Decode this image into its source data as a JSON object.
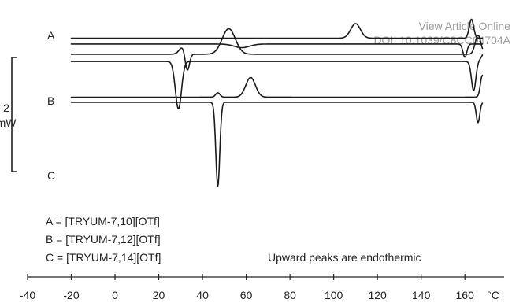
{
  "watermark": {
    "line1": "View Article Online",
    "line2": "DOI: 10.1039/C8CC04704A"
  },
  "chart_data": {
    "type": "line",
    "title": "",
    "xlabel": "",
    "x_unit": "°C",
    "ylabel": "",
    "xlim": [
      -40,
      170
    ],
    "x_ticks": [
      -40,
      -20,
      0,
      20,
      40,
      60,
      80,
      100,
      120,
      140,
      160
    ],
    "scale_bar": {
      "value": 2,
      "line1": "2",
      "line2": "mW"
    },
    "grid": false,
    "note": "Upward peaks are endothermic",
    "legend": [
      "A = [TRYUM-7,10][OTf]",
      "B = [TRYUM-7,12][OTf]",
      "C = [TRYUM-7,14][OTf]"
    ],
    "series": [
      {
        "name": "A",
        "traces": [
          {
            "direction": "heating",
            "baseline": 0.35,
            "peaks": [
              {
                "x": 110,
                "height": 1.0,
                "width": 2.2
              },
              {
                "x": 163,
                "height": 1.3,
                "width": 1.0
              }
            ],
            "steps": []
          },
          {
            "direction": "cooling",
            "baseline": -0.05,
            "peaks": [
              {
                "x": 58,
                "height": -0.25,
                "width": 3.5
              },
              {
                "x": 160,
                "height": -0.9,
                "width": 0.9
              }
            ],
            "steps": []
          }
        ]
      },
      {
        "name": "B",
        "traces": [
          {
            "direction": "heating",
            "baseline": -0.75,
            "peaks": [
              {
                "x": 31,
                "height": 0.5,
                "width": 1.6
              },
              {
                "x": 33,
                "height": -1.3,
                "width": 1.0
              },
              {
                "x": 52,
                "height": 1.75,
                "width": 3.0
              },
              {
                "x": 166,
                "height": 1.3,
                "width": 1.3
              }
            ],
            "steps": []
          },
          {
            "direction": "cooling",
            "baseline": -1.25,
            "peaks": [
              {
                "x": 29,
                "height": -3.25,
                "width": 1.4
              },
              {
                "x": 164,
                "height": -2.0,
                "width": 1.0
              }
            ],
            "steps": [
              {
                "x": 168,
                "delta": 0.9
              }
            ]
          }
        ]
      },
      {
        "name": "C",
        "traces": [
          {
            "direction": "heating",
            "baseline": -3.7,
            "peaks": [
              {
                "x": 47,
                "height": 0.3,
                "width": 1.0
              },
              {
                "x": 62,
                "height": 1.35,
                "width": 2.2
              },
              {
                "x": 168,
                "height": 1.5,
                "width": 0.9
              }
            ],
            "steps": []
          },
          {
            "direction": "cooling",
            "baseline": -4.05,
            "peaks": [
              {
                "x": 47,
                "height": -5.75,
                "width": 0.9
              },
              {
                "x": 166,
                "height": -1.4,
                "width": 0.8
              }
            ],
            "steps": []
          }
        ]
      }
    ]
  }
}
